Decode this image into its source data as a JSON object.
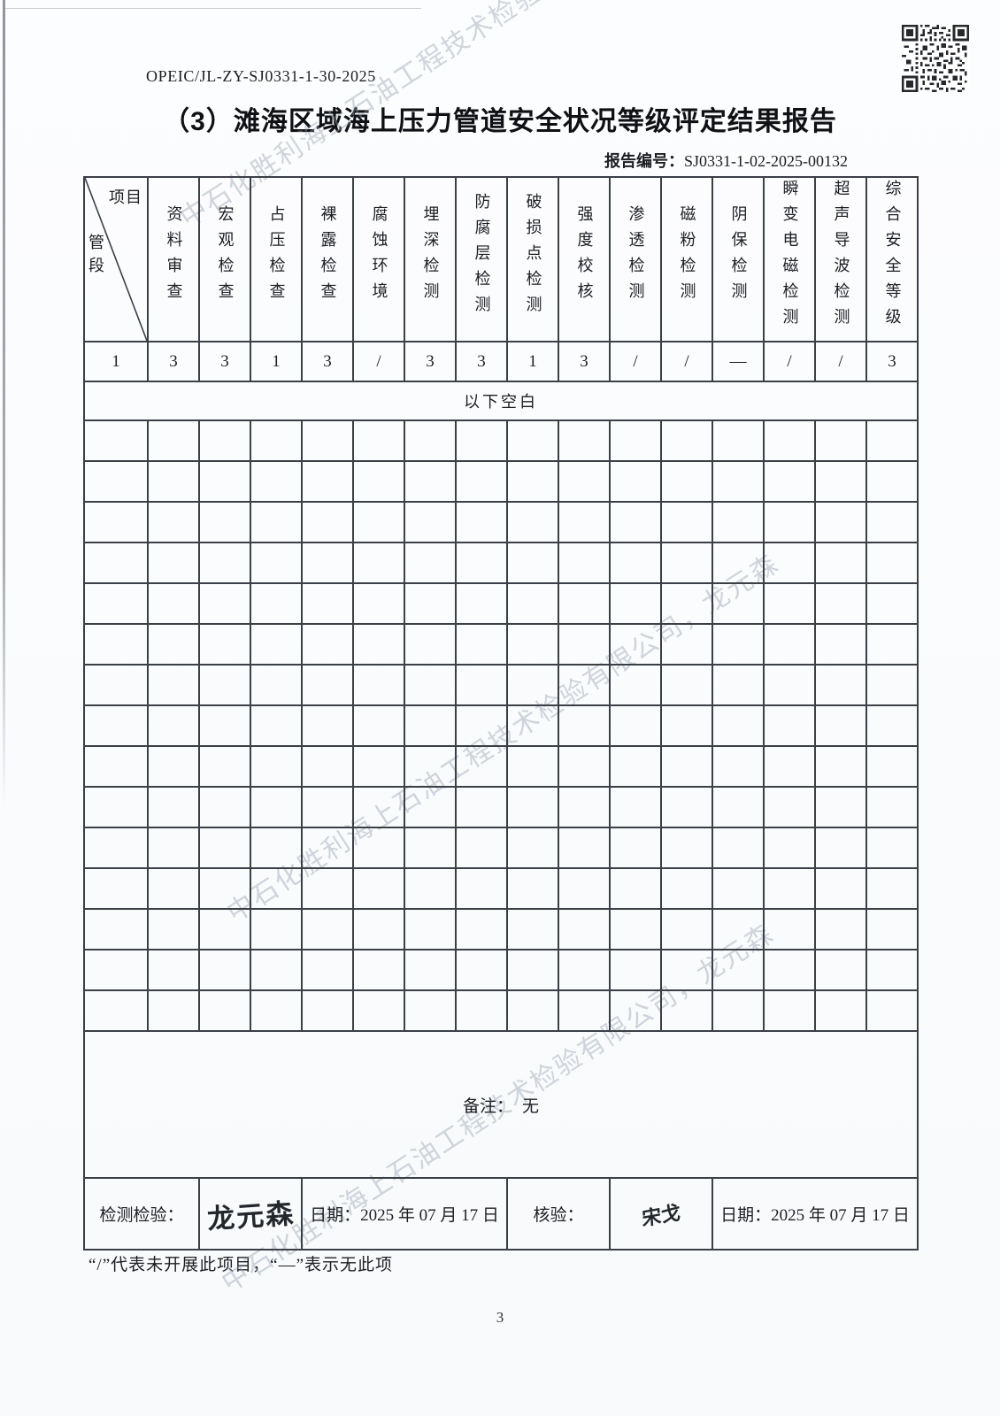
{
  "page": {
    "doc_number": "OPEIC/JL-ZY-SJ0331-1-30-2025",
    "title": "（3）滩海区域海上压力管道安全状况等级评定结果报告",
    "report_no_label": "报告编号：",
    "report_no": "SJ0331-1-02-2025-00132",
    "watermark": "中石化胜利海上石油工程技术检验有限公司，龙元森",
    "footnote": "“/”代表未开展此项目，“—”表示无此项",
    "page_number": "3"
  },
  "table": {
    "corner": {
      "top_right": "项目",
      "bottom_left": "管段"
    },
    "columns": [
      "资料审查",
      "宏观检查",
      "占压检查",
      "裸露检查",
      "腐蚀环境",
      "埋深检测",
      "防腐层检测",
      "破损点检测",
      "强度校核",
      "渗透检测",
      "磁粉检测",
      "阴保检测",
      "瞬变电磁检测",
      "超声导波检测",
      "综合安全等级"
    ],
    "rows": [
      {
        "segment": "1",
        "values": [
          "3",
          "3",
          "1",
          "3",
          "/",
          "3",
          "3",
          "1",
          "3",
          "/",
          "/",
          "—",
          "/",
          "/",
          "3"
        ]
      }
    ],
    "blank_note": "以下空白",
    "empty_row_count": 15,
    "remarks_label": "备注：",
    "remarks_value": "无"
  },
  "signoff": {
    "inspect_label": "检测检验：",
    "inspect_signature": "龙元森",
    "date_label": "日期：",
    "inspect_date": "2025 年 07 月 17 日",
    "verify_label": "核验：",
    "verify_signature": "宋戈",
    "verify_date": "2025 年 07 月 17 日"
  }
}
